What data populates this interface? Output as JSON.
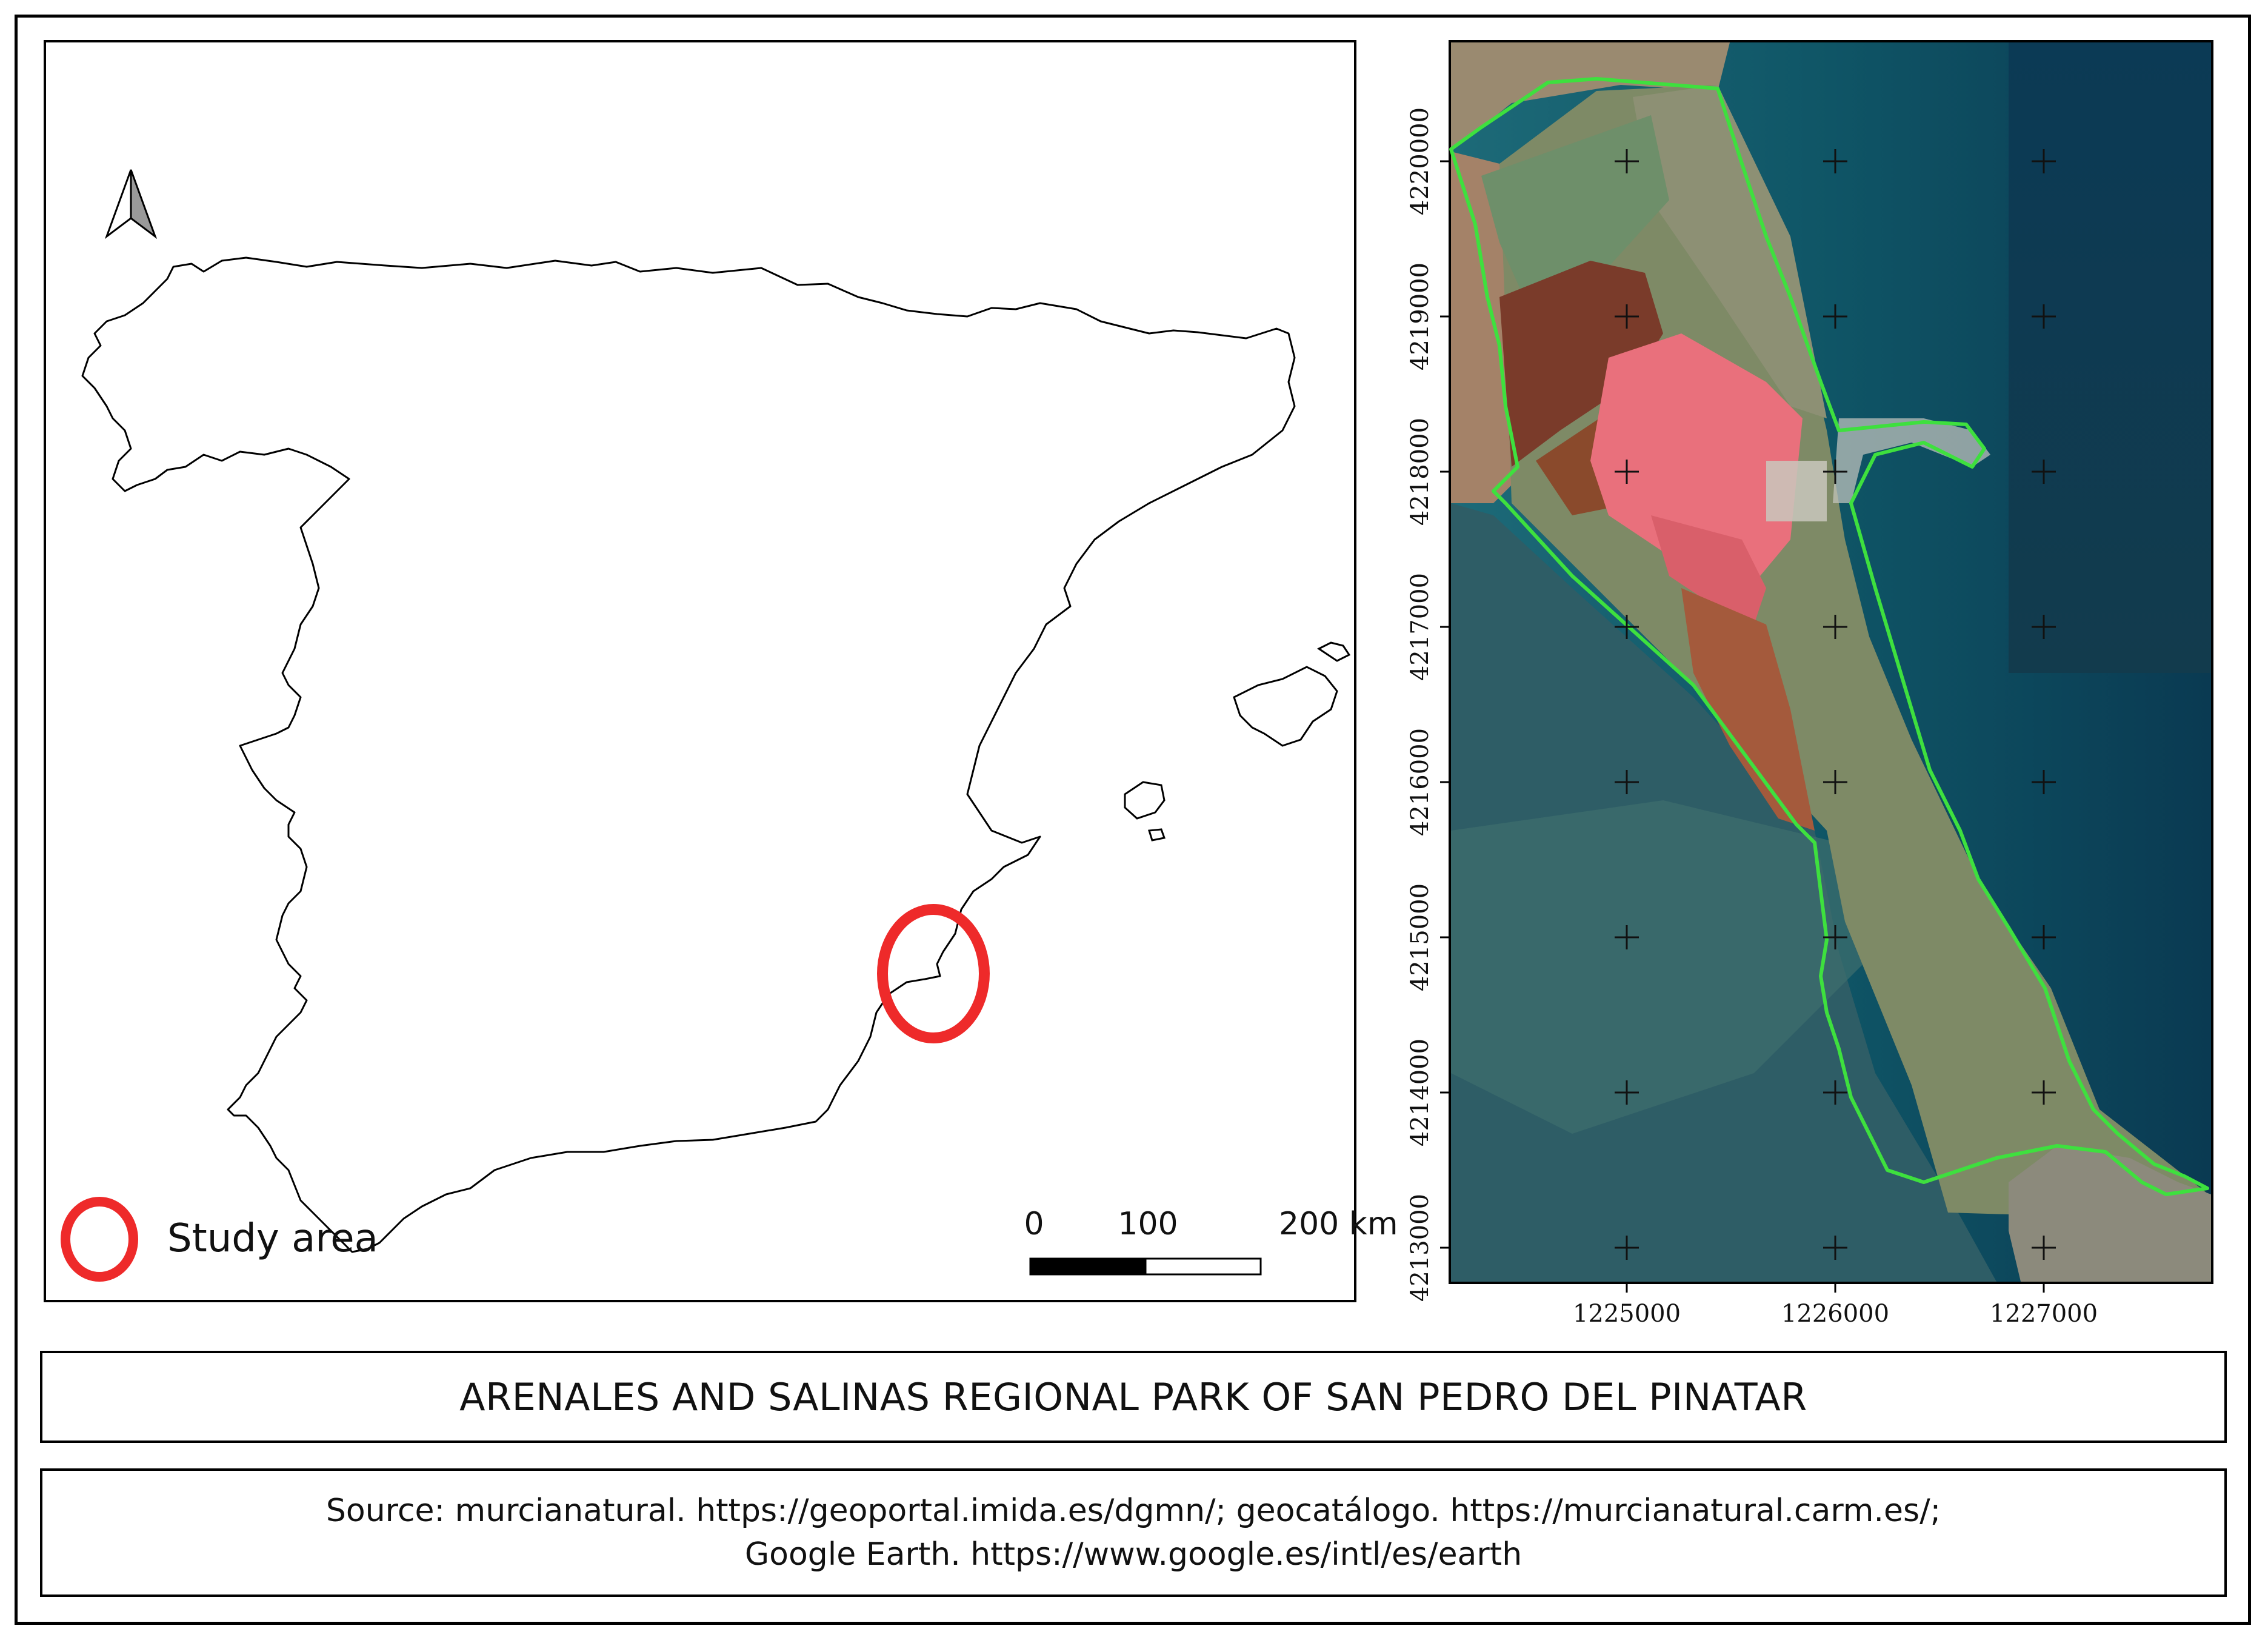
{
  "legend": {
    "label": "Study area",
    "symbol_color": "#ee2a2a"
  },
  "scalebar": {
    "labels": [
      "0",
      "100",
      "200 km"
    ]
  },
  "north_arrow": {
    "icon": "north-arrow-icon"
  },
  "highlight_color": "#ee2a2a",
  "boundary_color": "#3ee03e",
  "grid": {
    "x_ticks": [
      "1225000",
      "1226000",
      "1227000"
    ],
    "y_ticks": [
      "4220000",
      "4219000",
      "4218000",
      "4217000",
      "4216000",
      "4215000",
      "4214000",
      "4213000"
    ]
  },
  "title": "ARENALES AND SALINAS REGIONAL PARK OF SAN PEDRO DEL PINATAR",
  "source": {
    "line1": "Source: murcianatural. https://geoportal.imida.es/dgmn/; geocatálogo. https://murcianatural.carm.es/;",
    "line2": "Google Earth. https://www.google.es/intl/es/earth"
  }
}
